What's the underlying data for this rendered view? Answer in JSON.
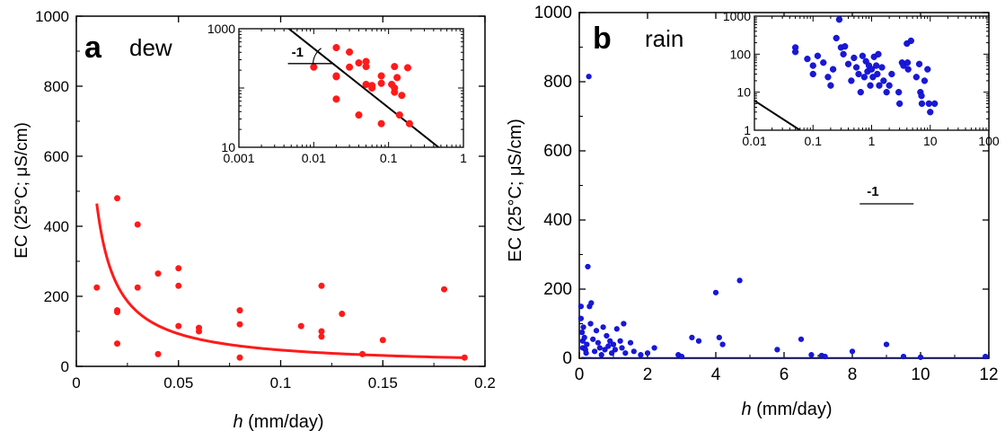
{
  "colors": {
    "dew": "#ff1a1a",
    "rain": "#1a1acc",
    "rain_edge": "#0000ff",
    "axis": "#000000",
    "fit_rain": "#0000ff"
  },
  "chart_data": [
    {
      "panel": "a",
      "label": "dew",
      "type": "scatter",
      "xlabel_italic": "h",
      "xlabel_rest": " (mm/day)",
      "ylabel": "EC (25°C; μS/cm)",
      "xlim": [
        0,
        0.2
      ],
      "ylim": [
        0,
        1000
      ],
      "xticks": [
        0,
        0.05,
        0.1,
        0.15,
        0.2
      ],
      "xtick_labels": [
        "0",
        "0.05",
        "0.1",
        "0.15",
        "0.2"
      ],
      "yticks": [
        0,
        200,
        400,
        600,
        800,
        1000
      ],
      "ytick_labels": [
        "0",
        "200",
        "400",
        "600",
        "800",
        "1000"
      ],
      "grid": false,
      "points": [
        [
          0.01,
          225
        ],
        [
          0.02,
          480
        ],
        [
          0.02,
          160
        ],
        [
          0.02,
          155
        ],
        [
          0.02,
          65
        ],
        [
          0.03,
          405
        ],
        [
          0.03,
          225
        ],
        [
          0.04,
          265
        ],
        [
          0.04,
          35
        ],
        [
          0.05,
          280
        ],
        [
          0.05,
          230
        ],
        [
          0.05,
          115
        ],
        [
          0.06,
          110
        ],
        [
          0.06,
          100
        ],
        [
          0.08,
          160
        ],
        [
          0.08,
          120
        ],
        [
          0.08,
          25
        ],
        [
          0.11,
          115
        ],
        [
          0.12,
          230
        ],
        [
          0.12,
          100
        ],
        [
          0.12,
          85
        ],
        [
          0.13,
          150
        ],
        [
          0.14,
          35
        ],
        [
          0.15,
          75
        ],
        [
          0.18,
          220
        ],
        [
          0.19,
          25
        ]
      ],
      "fit": {
        "form": "EC = a / h",
        "a": 4.65,
        "x_range": [
          0.01,
          0.19
        ]
      },
      "inset": {
        "xscale": "log",
        "yscale": "log",
        "xlim": [
          0.001,
          1
        ],
        "ylim": [
          10,
          1000
        ],
        "xticks": [
          0.001,
          0.01,
          0.1,
          1
        ],
        "xtick_labels": [
          "0.001",
          "0.01",
          "0.1",
          "1"
        ],
        "yticks": [
          10,
          1000
        ],
        "ytick_labels": [
          "10",
          "1000"
        ],
        "slope_label": "-1"
      }
    },
    {
      "panel": "b",
      "label": "rain",
      "type": "scatter",
      "xlabel_italic": "h",
      "xlabel_rest": " (mm/day)",
      "ylabel": "EC (25°C; μS/cm)",
      "xlim": [
        0,
        12
      ],
      "ylim": [
        0,
        1000
      ],
      "xticks": [
        0,
        2,
        4,
        6,
        8,
        10,
        12
      ],
      "xtick_labels": [
        "0",
        "2",
        "4",
        "6",
        "8",
        "10",
        "12"
      ],
      "yticks": [
        0,
        200,
        400,
        600,
        800,
        1000
      ],
      "ytick_labels": [
        "0",
        "200",
        "400",
        "600",
        "800",
        "1000"
      ],
      "grid": false,
      "points": [
        [
          0.05,
          150
        ],
        [
          0.05,
          115
        ],
        [
          0.08,
          75
        ],
        [
          0.1,
          50
        ],
        [
          0.1,
          30
        ],
        [
          0.12,
          90
        ],
        [
          0.15,
          60
        ],
        [
          0.18,
          25
        ],
        [
          0.2,
          15
        ],
        [
          0.22,
          40
        ],
        [
          0.25,
          265
        ],
        [
          0.28,
          815
        ],
        [
          0.3,
          150
        ],
        [
          0.33,
          100
        ],
        [
          0.35,
          160
        ],
        [
          0.4,
          55
        ],
        [
          0.45,
          20
        ],
        [
          0.5,
          80
        ],
        [
          0.55,
          45
        ],
        [
          0.6,
          30
        ],
        [
          0.65,
          10
        ],
        [
          0.7,
          90
        ],
        [
          0.75,
          25
        ],
        [
          0.8,
          65
        ],
        [
          0.85,
          35
        ],
        [
          0.9,
          50
        ],
        [
          0.95,
          15
        ],
        [
          1.0,
          40
        ],
        [
          1.05,
          25
        ],
        [
          1.1,
          85
        ],
        [
          1.2,
          50
        ],
        [
          1.25,
          30
        ],
        [
          1.3,
          100
        ],
        [
          1.35,
          15
        ],
        [
          1.5,
          45
        ],
        [
          1.6,
          20
        ],
        [
          1.8,
          10
        ],
        [
          2.0,
          15
        ],
        [
          2.2,
          30
        ],
        [
          2.9,
          10
        ],
        [
          3.0,
          5
        ],
        [
          3.3,
          60
        ],
        [
          3.5,
          50
        ],
        [
          4.0,
          190
        ],
        [
          4.1,
          60
        ],
        [
          4.2,
          40
        ],
        [
          4.7,
          225
        ],
        [
          5.8,
          25
        ],
        [
          6.5,
          55
        ],
        [
          6.8,
          10
        ],
        [
          7.1,
          8
        ],
        [
          7.2,
          5
        ],
        [
          8.0,
          20
        ],
        [
          9.0,
          40
        ],
        [
          9.5,
          5
        ],
        [
          10.0,
          3
        ],
        [
          11.9,
          5
        ]
      ],
      "fit": {
        "form": "EC = a / h",
        "a": 0.06,
        "x_range": [
          0.06,
          12
        ]
      },
      "inset": {
        "xscale": "log",
        "yscale": "log",
        "xlim": [
          0.01,
          100
        ],
        "ylim": [
          1,
          1000
        ],
        "xticks": [
          0.01,
          0.1,
          1,
          10,
          100
        ],
        "xtick_labels": [
          "0.01",
          "0.1",
          "1",
          "10",
          "100"
        ],
        "yticks": [
          1,
          10,
          100,
          1000
        ],
        "ytick_labels": [
          "1",
          "10",
          "100",
          "1000"
        ],
        "slope_label": "-1"
      }
    }
  ]
}
